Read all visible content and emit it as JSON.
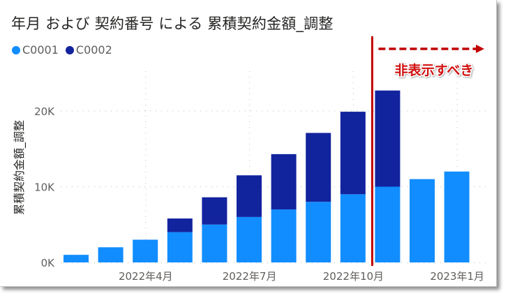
{
  "colors": {
    "C0001": "#118DFF",
    "C0002": "#12239E",
    "annotation": "#C00000"
  },
  "annotation": {
    "text": "非表示すべき",
    "marker_after_category_index": 9
  },
  "chart_data": {
    "type": "bar",
    "stacked": true,
    "title": "年月 および 契約番号 による 累積契約金額_調整",
    "xlabel": "",
    "ylabel": "累積契約金額_調整",
    "ylim": [
      0,
      25000
    ],
    "yticks": [
      0,
      10000,
      20000
    ],
    "ytick_labels": [
      "0K",
      "10K",
      "20K"
    ],
    "grid": true,
    "legend_position": "top-left",
    "categories": [
      "2022年1月",
      "2022年2月",
      "2022年3月",
      "2022年4月",
      "2022年5月",
      "2022年6月",
      "2022年7月",
      "2022年8月",
      "2022年9月",
      "2022年10月",
      "2022年11月",
      "2022年12月",
      "2023年1月"
    ],
    "xtick_labels": [
      {
        "index": 3,
        "label": "2022年4月"
      },
      {
        "index": 6,
        "label": "2022年7月"
      },
      {
        "index": 9,
        "label": "2022年10月"
      },
      {
        "index": 12,
        "label": "2023年1月"
      }
    ],
    "series": [
      {
        "name": "C0001",
        "values": [
          1000,
          2000,
          3000,
          4000,
          5000,
          6000,
          7000,
          8000,
          9000,
          10000,
          11000,
          12000,
          null
        ]
      },
      {
        "name": "C0002",
        "values": [
          0,
          0,
          0,
          1800,
          3600,
          5500,
          7300,
          9100,
          10900,
          12700,
          0,
          0,
          null
        ]
      }
    ]
  }
}
